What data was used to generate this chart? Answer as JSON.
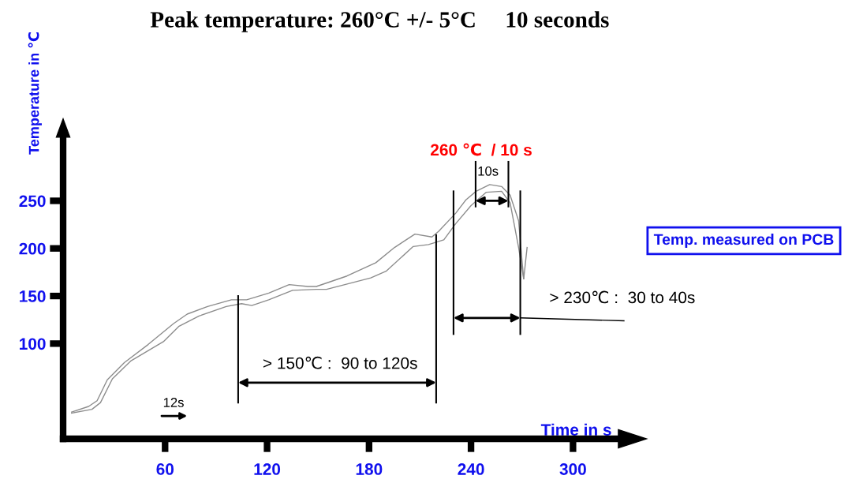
{
  "chart_data": {
    "type": "line",
    "title": "Peak temperature: 260°C +/- 5°C     10 seconds",
    "xlabel": "Time in s",
    "ylabel": "Temperature in ℃",
    "xlim": [
      0,
      330
    ],
    "ylim": [
      0,
      320
    ],
    "xticks": [
      60,
      120,
      180,
      240,
      300
    ],
    "yticks": [
      100,
      150,
      200,
      250
    ],
    "series": [
      {
        "color": "#8c8c8c",
        "x": [
          5,
          15,
          20,
          26,
          36,
          50,
          65,
          73,
          85,
          99,
          108,
          121,
          133,
          144,
          149,
          167,
          184,
          195,
          207,
          217,
          221,
          231,
          237,
          243,
          251,
          258,
          263,
          268,
          270,
          271
        ],
        "values": [
          28,
          34,
          40,
          62,
          80,
          99,
          121,
          131,
          139,
          146,
          146,
          153,
          162,
          160,
          160,
          171,
          185,
          201,
          215,
          212,
          218,
          237,
          251,
          260,
          267,
          265,
          256,
          229,
          187,
          168
        ]
      },
      {
        "color": "#8c8c8c",
        "x": [
          5,
          17,
          22,
          29,
          40,
          59,
          68,
          80,
          96,
          105,
          111,
          121,
          135,
          149,
          155,
          181,
          190,
          206,
          215,
          224,
          231,
          240,
          249,
          258,
          263,
          268,
          271,
          273
        ],
        "values": [
          27,
          31,
          38,
          63,
          82,
          102,
          118,
          129,
          139,
          142,
          140,
          146,
          156,
          157,
          157,
          169,
          176,
          202,
          204,
          209,
          226,
          245,
          259,
          260,
          248,
          201,
          168,
          201
        ]
      }
    ],
    "ref_lines": [
      {
        "axis": "x",
        "value": 103
      },
      {
        "axis": "x",
        "value": 219.5
      },
      {
        "axis": "x",
        "value": 229.7
      },
      {
        "axis": "x",
        "value": 269
      },
      {
        "axis": "x",
        "value": 242.7
      },
      {
        "axis": "x",
        "value": 262
      }
    ],
    "annotations": [
      "260 ℃  / 10 s",
      "10s",
      "> 150℃ :  90 to 120s",
      {
        "text": "> 230℃ :  30 to 40s",
        "x": 269,
        "y": 127
      },
      "12s",
      "Temp. measured on PCB"
    ],
    "marker": "none",
    "line_style": "solid"
  }
}
